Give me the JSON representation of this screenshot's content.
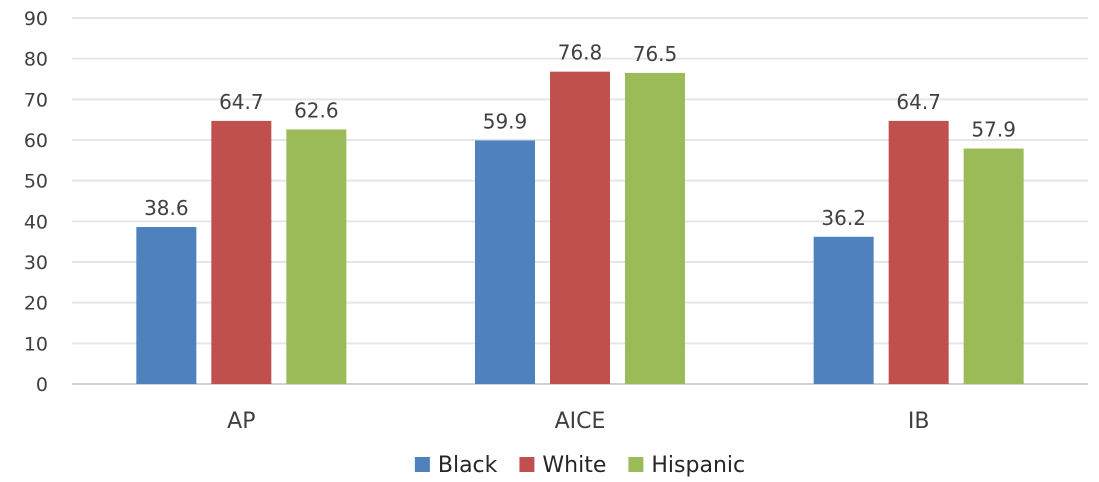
{
  "chart_data": {
    "type": "bar",
    "categories": [
      "AP",
      "AICE",
      "IB"
    ],
    "series": [
      {
        "name": "Black",
        "values": [
          38.6,
          59.9,
          36.2
        ],
        "color": "#4f81bd"
      },
      {
        "name": "White",
        "values": [
          64.7,
          76.8,
          64.7
        ],
        "color": "#c0504d"
      },
      {
        "name": "Hispanic",
        "values": [
          62.6,
          76.5,
          57.9
        ],
        "color": "#9bbb59"
      }
    ],
    "ylim": [
      0,
      90
    ],
    "yticks": [
      0,
      10,
      20,
      30,
      40,
      50,
      60,
      70,
      80,
      90
    ],
    "grid": true,
    "data_labels": true,
    "legend_position": "bottom",
    "gridline_color": "#e6e6e6",
    "axis_color": "#d0d0d0"
  }
}
